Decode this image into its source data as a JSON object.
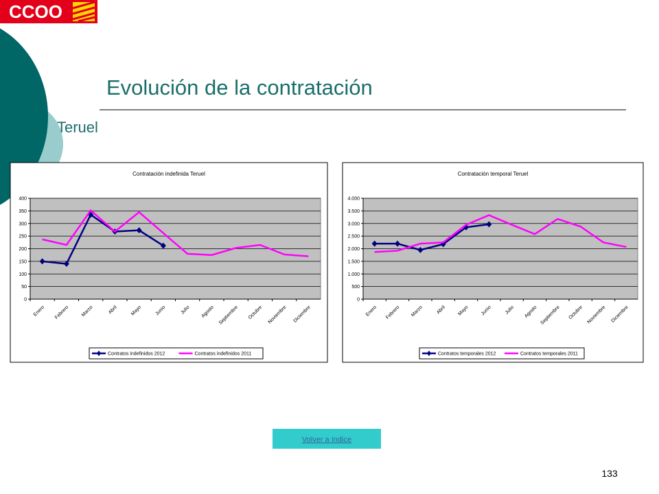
{
  "slide": {
    "logo": "CCOO",
    "title": "Evolución de la contratación",
    "subtitle": "Teruel",
    "button": "Volver a índice",
    "page_number": "133"
  },
  "chart_data": [
    {
      "type": "line",
      "title": "Contratación indefinida Teruel",
      "categories": [
        "Enero",
        "Febrero",
        "Marzo",
        "Abril",
        "Mayo",
        "Junio",
        "Julio",
        "Agosto",
        "Septiembre",
        "Octubre",
        "Noviembre",
        "Diciembre"
      ],
      "series": [
        {
          "name": "Contratos indefinidos 2012",
          "color": "#000080",
          "marker": "diamond",
          "values": [
            150,
            140,
            335,
            268,
            273,
            212,
            null,
            null,
            null,
            null,
            null,
            null
          ]
        },
        {
          "name": "Contratos indefinidos 2011",
          "color": "#ff00ff",
          "values": [
            237,
            215,
            352,
            268,
            345,
            262,
            180,
            175,
            203,
            215,
            177,
            170
          ]
        }
      ],
      "ylim": [
        0,
        400
      ],
      "yticks": [
        0,
        50,
        100,
        150,
        200,
        250,
        300,
        350,
        400
      ],
      "grid": true,
      "legend": "bottom"
    },
    {
      "type": "line",
      "title": "Contratación temporal Teruel",
      "categories": [
        "Enero",
        "Febrero",
        "Marzo",
        "Abril",
        "Mayo",
        "Junio",
        "Julio",
        "Agosto",
        "Septiembre",
        "Octubre",
        "Noviembre",
        "Diciembre"
      ],
      "series": [
        {
          "name": "Contratos temporales 2012",
          "color": "#000080",
          "marker": "diamond",
          "values": [
            2200,
            2200,
            1950,
            2180,
            2850,
            2970,
            null,
            null,
            null,
            null,
            null,
            null
          ]
        },
        {
          "name": "Contratos temporales 2011",
          "color": "#ff00ff",
          "values": [
            1870,
            1920,
            2200,
            2250,
            2950,
            3330,
            2950,
            2580,
            3180,
            2880,
            2250,
            2070
          ]
        }
      ],
      "ylim": [
        0,
        4000
      ],
      "yticks": [
        0,
        {
          "value": 500,
          "label": "500"
        },
        {
          "value": 1000,
          "label": "1.000"
        },
        {
          "value": 1500,
          "label": "1.500"
        },
        {
          "value": 2000,
          "label": "2.000"
        },
        {
          "value": 2500,
          "label": "2.500"
        },
        {
          "value": 3000,
          "label": "3.000"
        },
        {
          "value": 3500,
          "label": "3.500"
        },
        {
          "value": 4000,
          "label": "4.000"
        }
      ],
      "grid": true,
      "legend": "bottom"
    }
  ]
}
